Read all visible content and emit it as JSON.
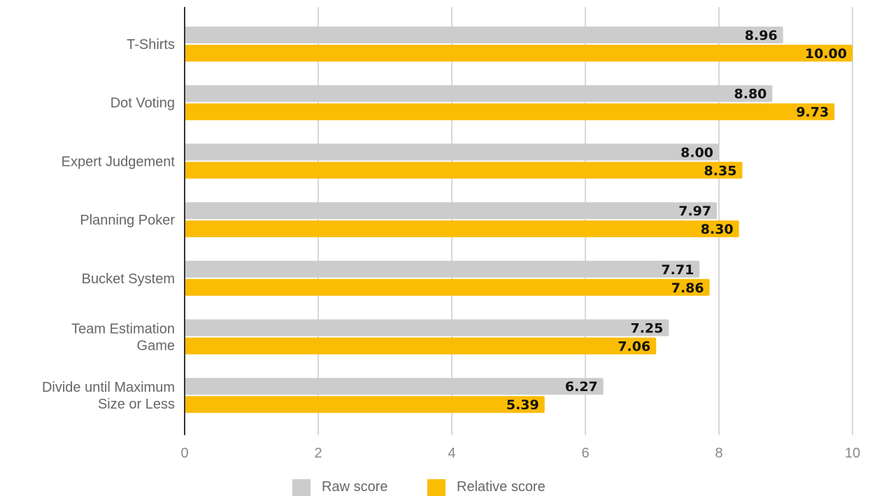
{
  "chart_data": {
    "type": "bar",
    "orientation": "horizontal",
    "categories": [
      [
        "T-Shirts"
      ],
      [
        "Dot Voting"
      ],
      [
        "Expert Judgement"
      ],
      [
        "Planning Poker"
      ],
      [
        "Bucket System"
      ],
      [
        "Team Estimation",
        "Game"
      ],
      [
        "Divide until Maximum",
        "Size or Less"
      ]
    ],
    "series": [
      {
        "name": "Raw score",
        "color": "#cccccc",
        "values": [
          8.96,
          8.8,
          8.0,
          7.97,
          7.71,
          7.25,
          6.27
        ],
        "labels": [
          "8.96",
          "8.80",
          "8.00",
          "7.97",
          "7.71",
          "7.25",
          "6.27"
        ]
      },
      {
        "name": "Relative score",
        "color": "#fbbc04",
        "values": [
          10.0,
          9.73,
          8.35,
          8.3,
          7.86,
          7.06,
          5.39
        ],
        "labels": [
          "10.00",
          "9.73",
          "8.35",
          "8.30",
          "7.86",
          "7.06",
          "5.39"
        ]
      }
    ],
    "xlim": [
      0,
      10
    ],
    "xticks": [
      "0",
      "2",
      "4",
      "6",
      "8",
      "10"
    ],
    "grid": true,
    "legend": "bottom"
  }
}
